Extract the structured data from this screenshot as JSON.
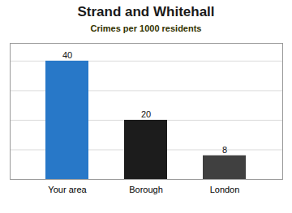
{
  "chart_data": {
    "type": "bar",
    "title": "Strand and Whitehall",
    "subtitle": "Crimes per 1000 residents",
    "categories": [
      "Your area",
      "Borough",
      "London"
    ],
    "values": [
      40,
      20,
      8
    ],
    "colors": [
      "#2878c8",
      "#1c1c1c",
      "#404040"
    ],
    "ylim": [
      0,
      46
    ],
    "yticks": [
      10,
      20,
      30,
      40
    ],
    "grid": true,
    "data_labels": true,
    "tick_labels": "x"
  }
}
